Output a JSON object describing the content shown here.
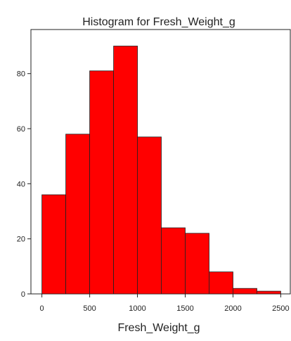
{
  "chart_data": {
    "type": "bar",
    "title": "Histogram for Fresh_Weight_g",
    "xlabel": "Fresh_Weight_g",
    "ylabel": "",
    "bins": [
      {
        "x0": 0,
        "x1": 250,
        "count": 36
      },
      {
        "x0": 250,
        "x1": 500,
        "count": 58
      },
      {
        "x0": 500,
        "x1": 750,
        "count": 81
      },
      {
        "x0": 750,
        "x1": 1000,
        "count": 90
      },
      {
        "x0": 1000,
        "x1": 1250,
        "count": 57
      },
      {
        "x0": 1250,
        "x1": 1500,
        "count": 24
      },
      {
        "x0": 1500,
        "x1": 1750,
        "count": 22
      },
      {
        "x0": 1750,
        "x1": 2000,
        "count": 8
      },
      {
        "x0": 2000,
        "x1": 2250,
        "count": 2
      },
      {
        "x0": 2250,
        "x1": 2500,
        "count": 1
      }
    ],
    "xlim": [
      -115,
      2600
    ],
    "ylim": [
      0,
      96
    ],
    "x_ticks": [
      0,
      500,
      1000,
      1500,
      2000,
      2500
    ],
    "x_tick_labels": [
      "0",
      "500",
      "1000",
      "1500",
      "2000",
      "2500"
    ],
    "y_ticks": [
      0,
      20,
      40,
      60,
      80
    ],
    "y_tick_labels": [
      "0",
      "20",
      "40",
      "60",
      "80"
    ],
    "grid": false,
    "legend": "none",
    "colors": {
      "bar_fill": "#ff0000",
      "bar_stroke": "#222222",
      "axis": "#222222"
    }
  }
}
